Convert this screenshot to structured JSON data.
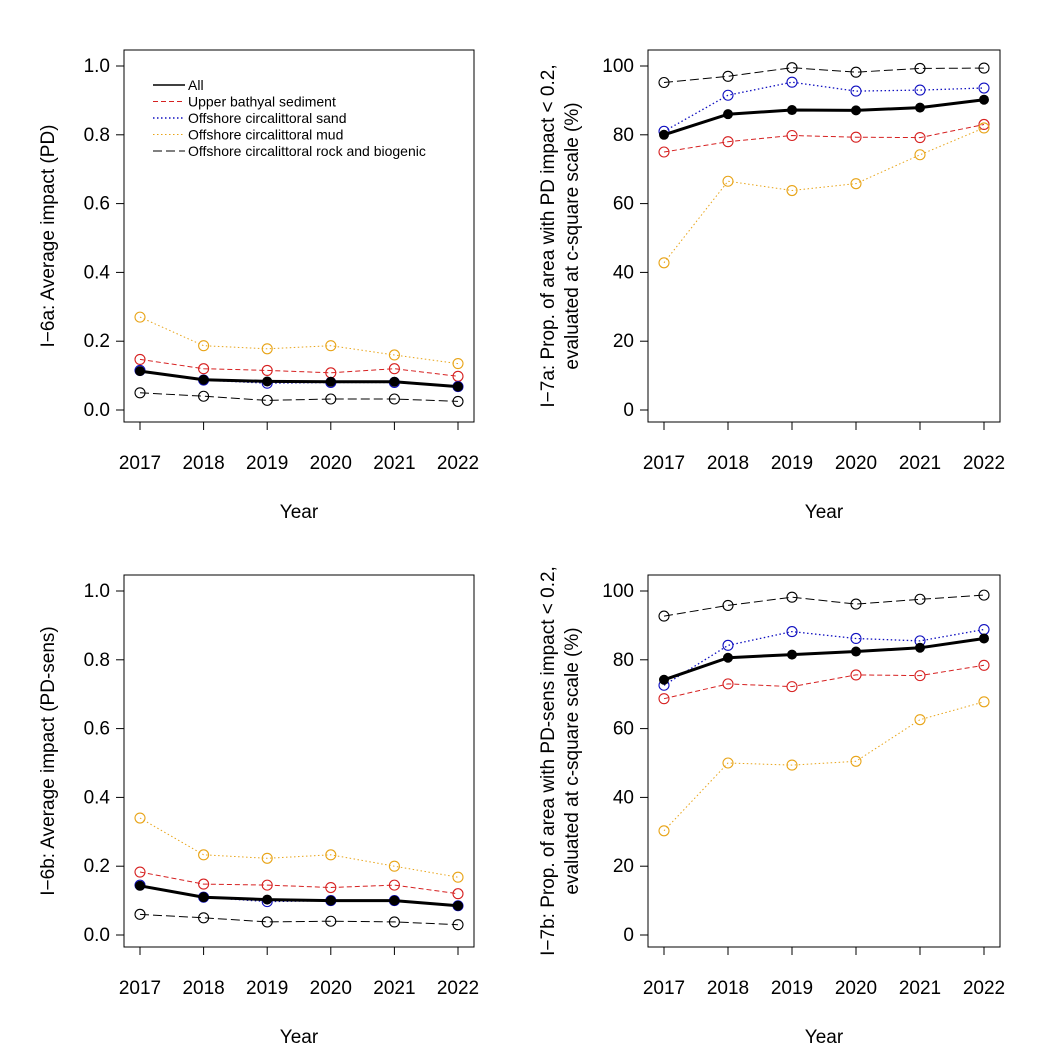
{
  "colors": {
    "All": "#000000",
    "Upper bathyal sediment": "#d62020",
    "Offshore circalittoral sand": "#1010c0",
    "Offshore circalittoral mud": "#e8a418",
    "Offshore circalittoral rock and biogenic": "#000000"
  },
  "legend": {
    "position": "top-left",
    "entries": [
      "All",
      "Upper bathyal sediment",
      "Offshore circalittoral sand",
      "Offshore circalittoral mud",
      "Offshore circalittoral rock and biogenic"
    ]
  },
  "chart_data": [
    {
      "type": "line",
      "id": "panel-6a",
      "xlabel": "Year",
      "ylabel": [
        "I−6a: Average impact (PD)"
      ],
      "x": [
        "2017",
        "2018",
        "2019",
        "2020",
        "2021",
        "2022"
      ],
      "ylim": [
        0,
        1
      ],
      "yticks": [
        "0.0",
        "0.2",
        "0.4",
        "0.6",
        "0.8",
        "1.0"
      ],
      "grid": false,
      "series": [
        {
          "name": "Offshore circalittoral mud",
          "values": [
            0.27,
            0.187,
            0.178,
            0.187,
            0.16,
            0.135
          ]
        },
        {
          "name": "Upper bathyal sediment",
          "values": [
            0.147,
            0.12,
            0.115,
            0.108,
            0.12,
            0.098
          ]
        },
        {
          "name": "Offshore circalittoral sand",
          "values": [
            0.115,
            0.087,
            0.078,
            0.08,
            0.08,
            0.068
          ]
        },
        {
          "name": "All",
          "values": [
            0.113,
            0.088,
            0.083,
            0.082,
            0.082,
            0.068
          ]
        },
        {
          "name": "Offshore circalittoral rock and biogenic",
          "values": [
            0.05,
            0.04,
            0.028,
            0.032,
            0.032,
            0.025
          ]
        }
      ]
    },
    {
      "type": "line",
      "id": "panel-7a",
      "xlabel": "Year",
      "ylabel": [
        "I−7a: Prop. of area with PD impact < 0.2,",
        "evaluated at c-square scale (%)"
      ],
      "x": [
        "2017",
        "2018",
        "2019",
        "2020",
        "2021",
        "2022"
      ],
      "ylim": [
        0,
        100
      ],
      "yticks": [
        "0",
        "20",
        "40",
        "60",
        "80",
        "100"
      ],
      "grid": false,
      "series": [
        {
          "name": "Offshore circalittoral rock and biogenic",
          "values": [
            95.2,
            97,
            99.5,
            98.2,
            99.3,
            99.4
          ]
        },
        {
          "name": "Offshore circalittoral sand",
          "values": [
            81,
            91.5,
            95.3,
            92.7,
            93,
            93.6
          ]
        },
        {
          "name": "All",
          "values": [
            80,
            86,
            87.2,
            87.1,
            87.9,
            90.2
          ]
        },
        {
          "name": "Upper bathyal sediment",
          "values": [
            75,
            78,
            79.8,
            79.3,
            79.2,
            83
          ]
        },
        {
          "name": "Offshore circalittoral mud",
          "values": [
            42.8,
            66.5,
            63.8,
            65.8,
            74.2,
            82
          ]
        }
      ]
    },
    {
      "type": "line",
      "id": "panel-6b",
      "xlabel": "Year",
      "ylabel": [
        "I−6b: Average impact (PD-sens)"
      ],
      "x": [
        "2017",
        "2018",
        "2019",
        "2020",
        "2021",
        "2022"
      ],
      "ylim": [
        0,
        1
      ],
      "yticks": [
        "0.0",
        "0.2",
        "0.4",
        "0.6",
        "0.8",
        "1.0"
      ],
      "grid": false,
      "series": [
        {
          "name": "Offshore circalittoral mud",
          "values": [
            0.34,
            0.233,
            0.223,
            0.233,
            0.2,
            0.168
          ]
        },
        {
          "name": "Upper bathyal sediment",
          "values": [
            0.183,
            0.148,
            0.145,
            0.138,
            0.145,
            0.12
          ]
        },
        {
          "name": "Offshore circalittoral sand",
          "values": [
            0.145,
            0.11,
            0.097,
            0.1,
            0.1,
            0.085
          ]
        },
        {
          "name": "All",
          "values": [
            0.143,
            0.11,
            0.103,
            0.1,
            0.1,
            0.085
          ]
        },
        {
          "name": "Offshore circalittoral rock and biogenic",
          "values": [
            0.06,
            0.05,
            0.038,
            0.04,
            0.038,
            0.03
          ]
        }
      ]
    },
    {
      "type": "line",
      "id": "panel-7b",
      "xlabel": "Year",
      "ylabel": [
        "I−7b: Prop. of area with PD-sens impact < 0.2,",
        "evaluated at c-square scale (%)"
      ],
      "x": [
        "2017",
        "2018",
        "2019",
        "2020",
        "2021",
        "2022"
      ],
      "ylim": [
        0,
        100
      ],
      "yticks": [
        "0",
        "20",
        "40",
        "60",
        "80",
        "100"
      ],
      "grid": false,
      "series": [
        {
          "name": "Offshore circalittoral rock and biogenic",
          "values": [
            92.7,
            95.8,
            98.2,
            96.2,
            97.6,
            98.8
          ]
        },
        {
          "name": "Offshore circalittoral sand",
          "values": [
            72.6,
            84.2,
            88.2,
            86.2,
            85.5,
            88.8
          ]
        },
        {
          "name": "All",
          "values": [
            74.2,
            80.6,
            81.5,
            82.4,
            83.5,
            86.2
          ]
        },
        {
          "name": "Upper bathyal sediment",
          "values": [
            68.7,
            73,
            72.2,
            75.6,
            75.4,
            78.4
          ]
        },
        {
          "name": "Offshore circalittoral mud",
          "values": [
            30.3,
            50,
            49.4,
            50.5,
            62.6,
            67.8
          ]
        }
      ]
    }
  ]
}
